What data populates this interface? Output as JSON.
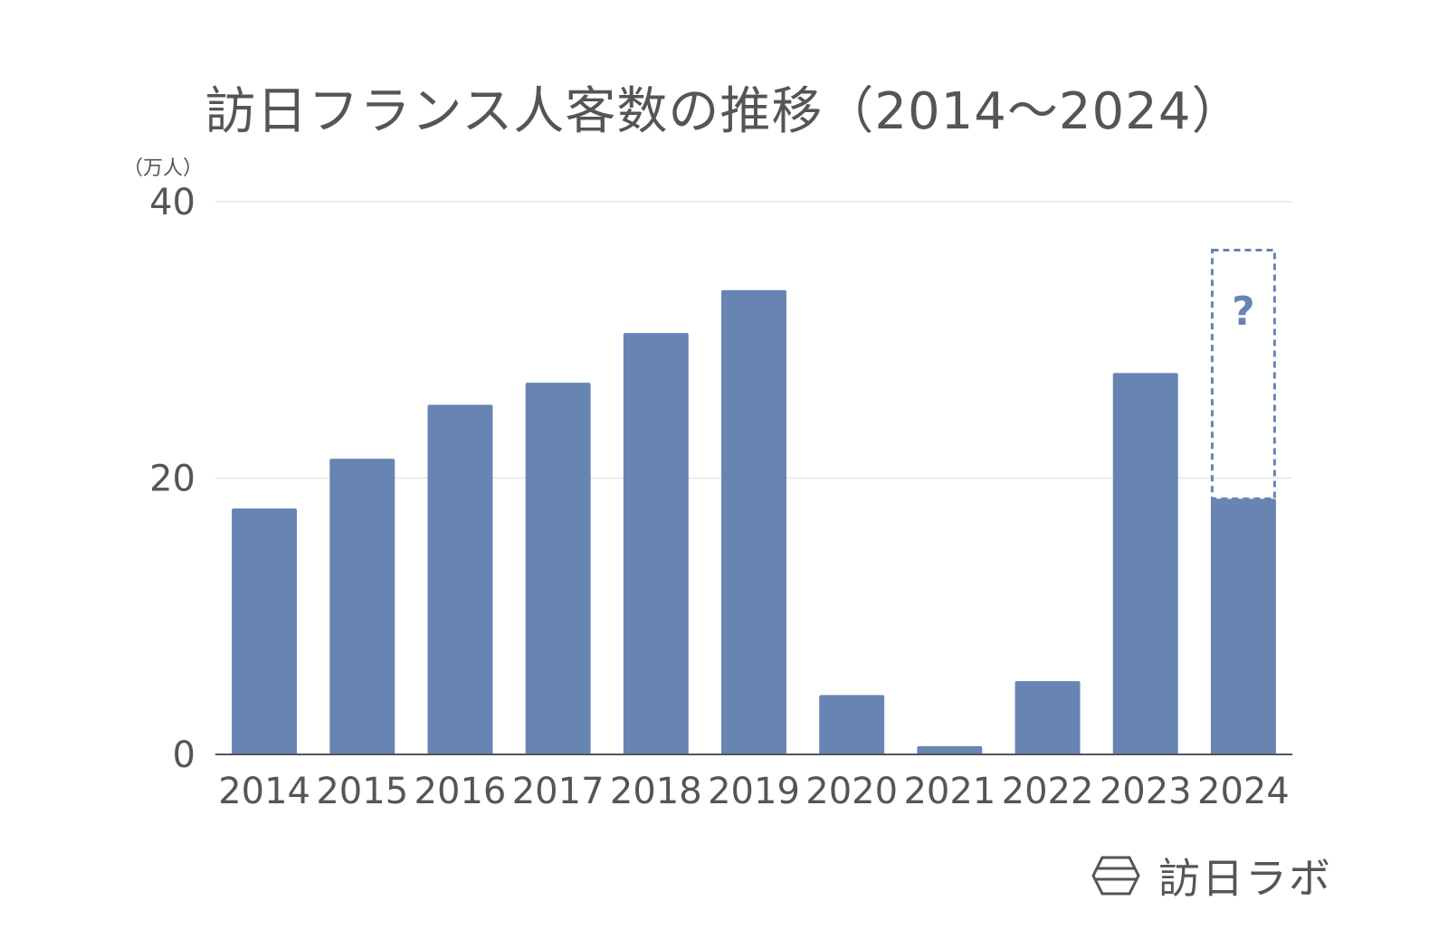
{
  "title": "訪日フランス人客数の推移（2014〜2024）",
  "unit_label": "（万人）",
  "brand": {
    "name": "訪日ラボ",
    "logo_icon": "hexagon-logo-icon"
  },
  "colors": {
    "bar": "#6784b2",
    "grid": "#e6e6e6",
    "axis": "#555555",
    "text": "#555555"
  },
  "chart_data": {
    "type": "bar",
    "title": "訪日フランス人客数の推移（2014〜2024）",
    "ylabel": "（万人）",
    "xlabel": "",
    "categories": [
      "2014",
      "2015",
      "2016",
      "2017",
      "2018",
      "2019",
      "2020",
      "2021",
      "2022",
      "2023",
      "2024"
    ],
    "values": [
      17.8,
      21.4,
      25.3,
      26.9,
      30.5,
      33.6,
      4.3,
      0.6,
      5.3,
      27.6,
      18.5
    ],
    "ylim": [
      0,
      40
    ],
    "yticks": [
      0,
      20,
      40
    ],
    "grid": true,
    "projection": {
      "category": "2024",
      "upper_value": 36.5,
      "label": "?",
      "style": "dashed outline"
    }
  }
}
